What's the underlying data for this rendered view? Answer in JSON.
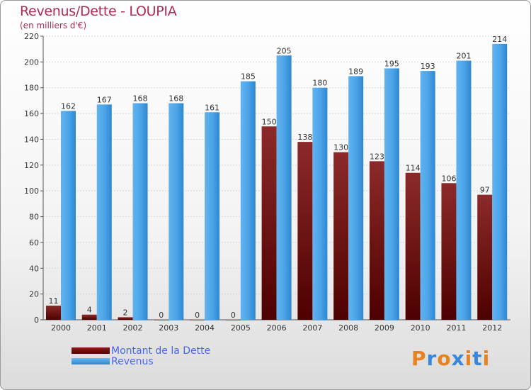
{
  "header": {
    "title": "Revenus/Dette - LOUPIA",
    "subtitle": "(en milliers d'€)"
  },
  "legend": {
    "items": [
      {
        "label": "Montant de la Dette",
        "color": "#6b0a0a"
      },
      {
        "label": "Revenus",
        "color": "#4aa3e8"
      }
    ]
  },
  "logo": {
    "text": "Proxiti",
    "colors": [
      "#e8821e",
      "#3a87d9",
      "#e8821e",
      "#3a87d9",
      "#e8821e",
      "#3a87d9",
      "#e8821e"
    ]
  },
  "chart_data": {
    "type": "bar",
    "title": "Revenus/Dette - LOUPIA",
    "ylabel": "(en milliers d'€)",
    "xlabel": "",
    "categories": [
      "2000",
      "2001",
      "2002",
      "2003",
      "2004",
      "2005",
      "2006",
      "2007",
      "2008",
      "2009",
      "2010",
      "2011",
      "2012"
    ],
    "series": [
      {
        "name": "Montant de la Dette",
        "color": "#6b0a0a",
        "values": [
          11,
          4,
          2,
          0,
          0,
          0,
          150,
          138,
          130,
          123,
          114,
          106,
          97
        ]
      },
      {
        "name": "Revenus",
        "color": "#4aa3e8",
        "values": [
          162,
          167,
          168,
          168,
          161,
          185,
          205,
          180,
          189,
          195,
          193,
          201,
          214
        ]
      }
    ],
    "ylim": [
      0,
      220
    ],
    "yticks": [
      0,
      20,
      40,
      60,
      80,
      100,
      120,
      140,
      160,
      180,
      200,
      220
    ],
    "grid": true,
    "legend_position": "bottom-left"
  }
}
